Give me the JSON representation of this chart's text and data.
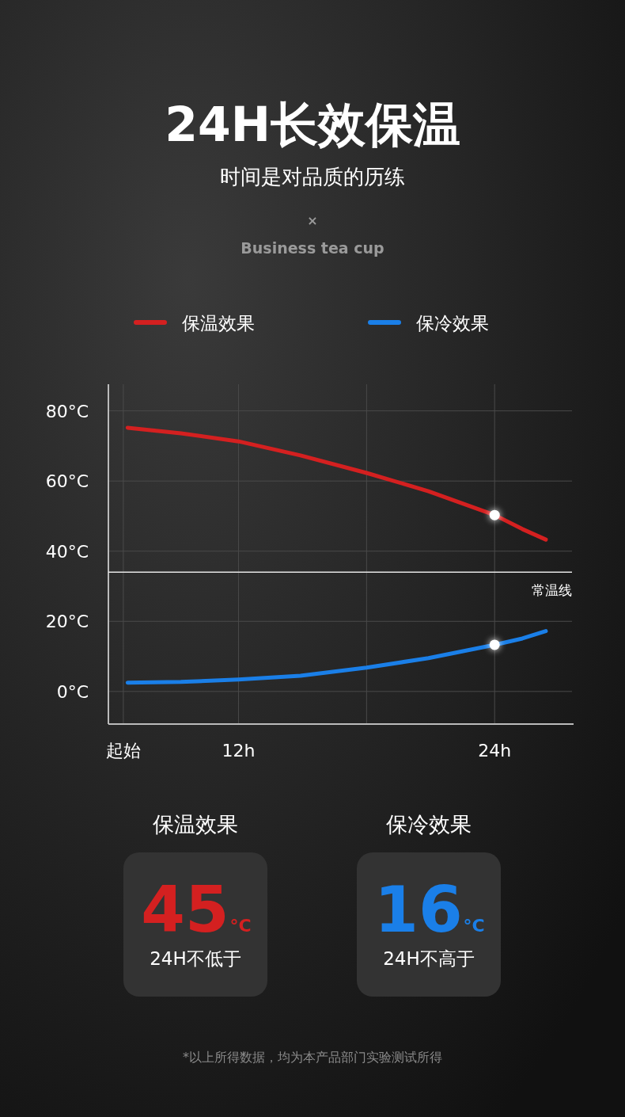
{
  "chart_data": [
    {
      "type": "line",
      "title": "24H长效保温",
      "subtitle": "时间是对品质的历练",
      "annotations": [
        "×",
        "Business tea cup"
      ],
      "xlim": [
        5.9,
        27.7
      ],
      "xticks": [
        {
          "value": 6.6,
          "label": "起始"
        },
        {
          "value": 12,
          "label": "12h"
        },
        {
          "value": 18,
          "label": null
        },
        {
          "value": 24,
          "label": "24h"
        }
      ],
      "ylim": [
        -9.3,
        87.6
      ],
      "yticks": [
        {
          "value": 0,
          "label": "0°C"
        },
        {
          "value": 20,
          "label": "20°C"
        },
        {
          "value": 40,
          "label": "40°C"
        },
        {
          "value": 60,
          "label": "60°C"
        },
        {
          "value": 80,
          "label": "80°C"
        }
      ],
      "grid": true,
      "legend": "top",
      "line_style": "solid",
      "ref_lines": [
        {
          "axis": "y",
          "value": 34,
          "label": "常温线",
          "color": "#e6e6e6"
        }
      ],
      "series": [
        {
          "name": "保温效果",
          "color": "#d42020",
          "x": [
            6.8,
            9.3,
            12,
            14.9,
            18,
            20.9,
            24,
            25.3,
            26.4
          ],
          "values": [
            75.2,
            73.6,
            71.3,
            67.3,
            62.3,
            57.1,
            50.3,
            46.3,
            43.3
          ]
        },
        {
          "name": "保冷效果",
          "color": "#1a7fe8",
          "x": [
            6.8,
            9.3,
            12,
            14.9,
            18,
            20.9,
            24,
            25.3,
            26.4
          ],
          "values": [
            2.5,
            2.7,
            3.4,
            4.5,
            6.8,
            9.5,
            13.3,
            15.1,
            17.2
          ]
        },
        {
          "type": "scatter",
          "color": "#ffffff",
          "marker": "circle",
          "x": [
            24,
            24
          ],
          "values": [
            50.3,
            13.3
          ]
        }
      ]
    },
    {
      "type": "other",
      "categories": [
        "保温效果",
        "保冷效果"
      ],
      "values": [
        45,
        16
      ],
      "data_labels": true,
      "annotations": [
        {
          "text": "°C",
          "x": "保温效果"
        },
        {
          "text": "24H不低于",
          "x": "保温效果"
        },
        {
          "text": "°C",
          "x": "保冷效果"
        },
        {
          "text": "24H不高于",
          "x": "保冷效果"
        },
        "*以上所得数据，均为本产品部门实验测试所得"
      ]
    }
  ]
}
